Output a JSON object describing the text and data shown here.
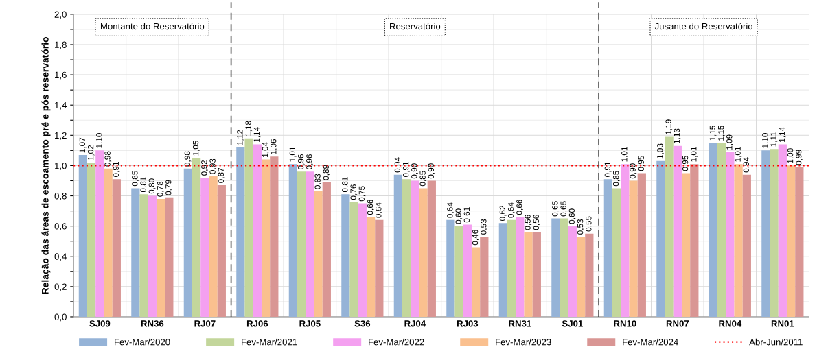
{
  "chart_data": {
    "type": "bar",
    "ylabel": "Relação das áreas de escoamento pré e pós reservatório",
    "categories": [
      "SJ09",
      "RN36",
      "RJ07",
      "RJ06",
      "RJ05",
      "S36",
      "RJ04",
      "RJ03",
      "RN31",
      "SJ01",
      "RN10",
      "RN07",
      "RN04",
      "RN01"
    ],
    "series": [
      {
        "name": "Fev-Mar/2020",
        "color": "#95b3d7",
        "values": [
          1.07,
          0.85,
          0.98,
          1.12,
          1.01,
          0.81,
          0.94,
          0.64,
          0.62,
          0.65,
          0.91,
          1.03,
          1.15,
          1.1
        ],
        "value_labels": [
          "1,07",
          "0,85",
          "0,98",
          "1,12",
          "1,01",
          "0,81",
          "0,94",
          "0,64",
          "0,62",
          "0,65",
          "0,91",
          "1,03",
          "1,15",
          "1,10"
        ]
      },
      {
        "name": "Fev-Mar/2021",
        "color": "#c3d69b",
        "values": [
          1.02,
          0.81,
          1.05,
          1.18,
          0.96,
          0.76,
          0.91,
          0.6,
          0.64,
          0.65,
          0.85,
          1.19,
          1.15,
          1.11
        ],
        "value_labels": [
          "1,02",
          "0,81",
          "1,05",
          "1,18",
          "0,96",
          "0,76",
          "0,91",
          "0,60",
          "0,64",
          "0,65",
          "0,85",
          "1,19",
          "1,15",
          "1,11"
        ]
      },
      {
        "name": "Fev-Mar/2022",
        "color": "#f4a0f0",
        "values": [
          1.1,
          0.8,
          0.92,
          1.14,
          0.96,
          0.75,
          0.9,
          0.61,
          0.66,
          0.6,
          1.01,
          1.13,
          1.09,
          1.14
        ],
        "value_labels": [
          "1,10",
          "0,80",
          "0,92",
          "1,14",
          "0,96",
          "0,75",
          "0,90",
          "0,61",
          "0,66",
          "0,60",
          "1,01",
          "1,13",
          "1,09",
          "1,14"
        ]
      },
      {
        "name": "Fev-Mar/2023",
        "color": "#fac08f",
        "values": [
          0.98,
          0.78,
          0.93,
          1.04,
          0.83,
          0.66,
          0.85,
          0.46,
          0.56,
          0.53,
          0.9,
          0.95,
          1.01,
          1.0
        ],
        "value_labels": [
          "0,98",
          "0,78",
          "0,93",
          "1,04",
          "0,83",
          "0,66",
          "0,85",
          "0,46",
          "0,56",
          "0,53",
          "0,90",
          "0,95",
          "1,01",
          "1,00"
        ]
      },
      {
        "name": "Fev-Mar/2024",
        "color": "#d99694",
        "values": [
          0.91,
          0.79,
          0.87,
          1.06,
          0.89,
          0.64,
          0.9,
          0.53,
          0.56,
          0.55,
          0.95,
          1.01,
          0.94,
          0.99
        ],
        "value_labels": [
          "0,91",
          "0,79",
          "0,87",
          "1,06",
          "0,89",
          "0,64",
          "0,90",
          "0,53",
          "0,56",
          "0,55",
          "0,95",
          "1,01",
          "0,94",
          "0,99"
        ]
      }
    ],
    "ylim": [
      0,
      2
    ],
    "yticks": [
      {
        "value": 0,
        "label": "0,0"
      },
      {
        "value": 0.1,
        "label": null
      },
      {
        "value": 0.2,
        "label": "0,2"
      },
      {
        "value": 0.3,
        "label": null
      },
      {
        "value": 0.4,
        "label": "0,4"
      },
      {
        "value": 0.5,
        "label": null
      },
      {
        "value": 0.6,
        "label": "0,6"
      },
      {
        "value": 0.7,
        "label": null
      },
      {
        "value": 0.8,
        "label": "0,8"
      },
      {
        "value": 0.9,
        "label": null
      },
      {
        "value": 1.0,
        "label": "1,0"
      },
      {
        "value": 1.1,
        "label": null
      },
      {
        "value": 1.2,
        "label": "1,2"
      },
      {
        "value": 1.3,
        "label": null
      },
      {
        "value": 1.4,
        "label": "1,4"
      },
      {
        "value": 1.5,
        "label": null
      },
      {
        "value": 1.6,
        "label": "1,6"
      },
      {
        "value": 1.7,
        "label": null
      },
      {
        "value": 1.8,
        "label": "1,8"
      },
      {
        "value": 1.9,
        "label": null
      },
      {
        "value": 2.0,
        "label": "2,0"
      }
    ],
    "ref_lines": [
      {
        "axis": "y",
        "value": 1.0,
        "label": "Abr-Jun/2011",
        "color": "#ff0000",
        "line_style": "dotted"
      }
    ],
    "annotations": [
      "Montante do Reservatório",
      "Reservatório",
      "Jusante do Reservatório"
    ],
    "grid": true,
    "legend": "bottom"
  }
}
